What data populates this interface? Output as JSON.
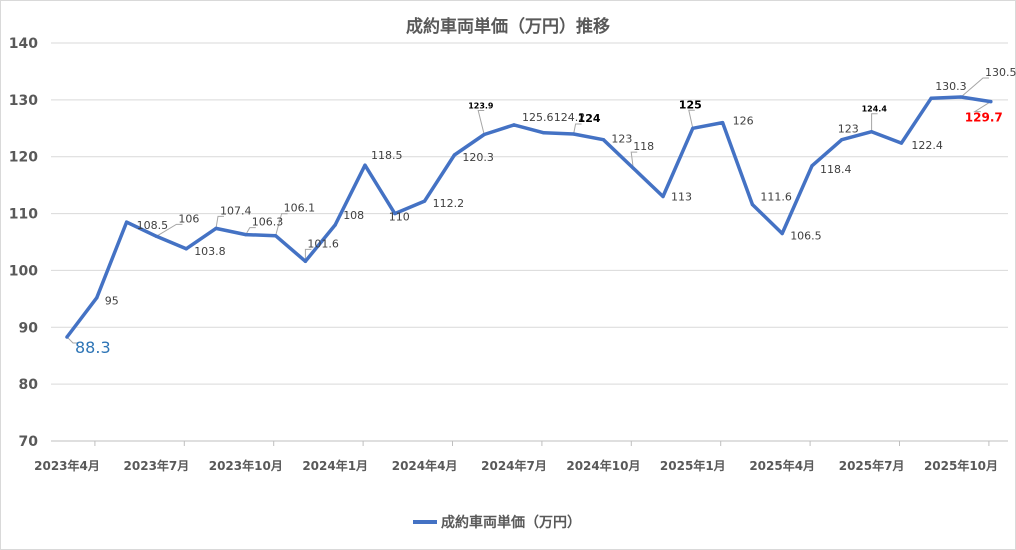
{
  "colors": {
    "series": "#4472C4",
    "grid": "#d9d9d9",
    "axis_text": "#595959",
    "label_text": "#404040",
    "highlight_blue": "#2e75b6",
    "highlight_red": "#ff0000"
  },
  "chart_data": {
    "type": "line",
    "title": "成約車両単価（万円）推移",
    "ylim": [
      70,
      140
    ],
    "yticks": [
      70,
      80,
      90,
      100,
      110,
      120,
      130,
      140
    ],
    "grid": "horizontal",
    "legend_position": "bottom",
    "xtick_labels": [
      "2023年4月",
      "2023年7月",
      "2023年10月",
      "2024年1月",
      "2024年4月",
      "2024年7月",
      "2024年10月",
      "2025年1月",
      "2025年4月",
      "2025年7月",
      "2025年10月"
    ],
    "x": [
      "2023年4月",
      "2023年5月",
      "2023年6月",
      "2023年7月",
      "2023年8月",
      "2023年9月",
      "2023年10月",
      "2023年11月",
      "2023年12月",
      "2024年1月",
      "2024年2月",
      "2024年3月",
      "2024年4月",
      "2024年5月",
      "2024年6月",
      "2024年7月",
      "2024年8月",
      "2024年9月",
      "2024年10月",
      "2024年11月",
      "2024年12月",
      "2025年1月",
      "2025年2月",
      "2025年3月",
      "2025年4月",
      "2025年5月",
      "2025年6月",
      "2025年7月",
      "2025年8月",
      "2025年9月",
      "2025年10月",
      "2025年11月"
    ],
    "series": [
      {
        "name": "成約車両単価（万円）",
        "values": [
          88.3,
          95.2,
          108.5,
          106,
          103.8,
          107.4,
          106.3,
          106.1,
          101.6,
          108,
          118.5,
          110,
          112.2,
          120.3,
          123.9,
          125.6,
          124.2,
          124,
          123,
          118,
          113,
          125,
          126,
          111.6,
          106.5,
          118.4,
          123,
          124.4,
          122.4,
          130.3,
          130.5,
          129.7
        ],
        "data_labels": [
          "88.3",
          "95",
          "108.5",
          "106",
          "103.8",
          "107.4",
          "106.3",
          "106.1",
          "101.6",
          "108",
          "118.5",
          "110",
          "112.2",
          "120.3",
          "123.9",
          "125.6",
          "124.2",
          "124",
          "123",
          "118",
          "113",
          "125",
          "126",
          "111.6",
          "106.5",
          "118.4",
          "123",
          "124.4",
          "122.4",
          "130.3",
          "130.5",
          "129.7"
        ]
      }
    ]
  }
}
